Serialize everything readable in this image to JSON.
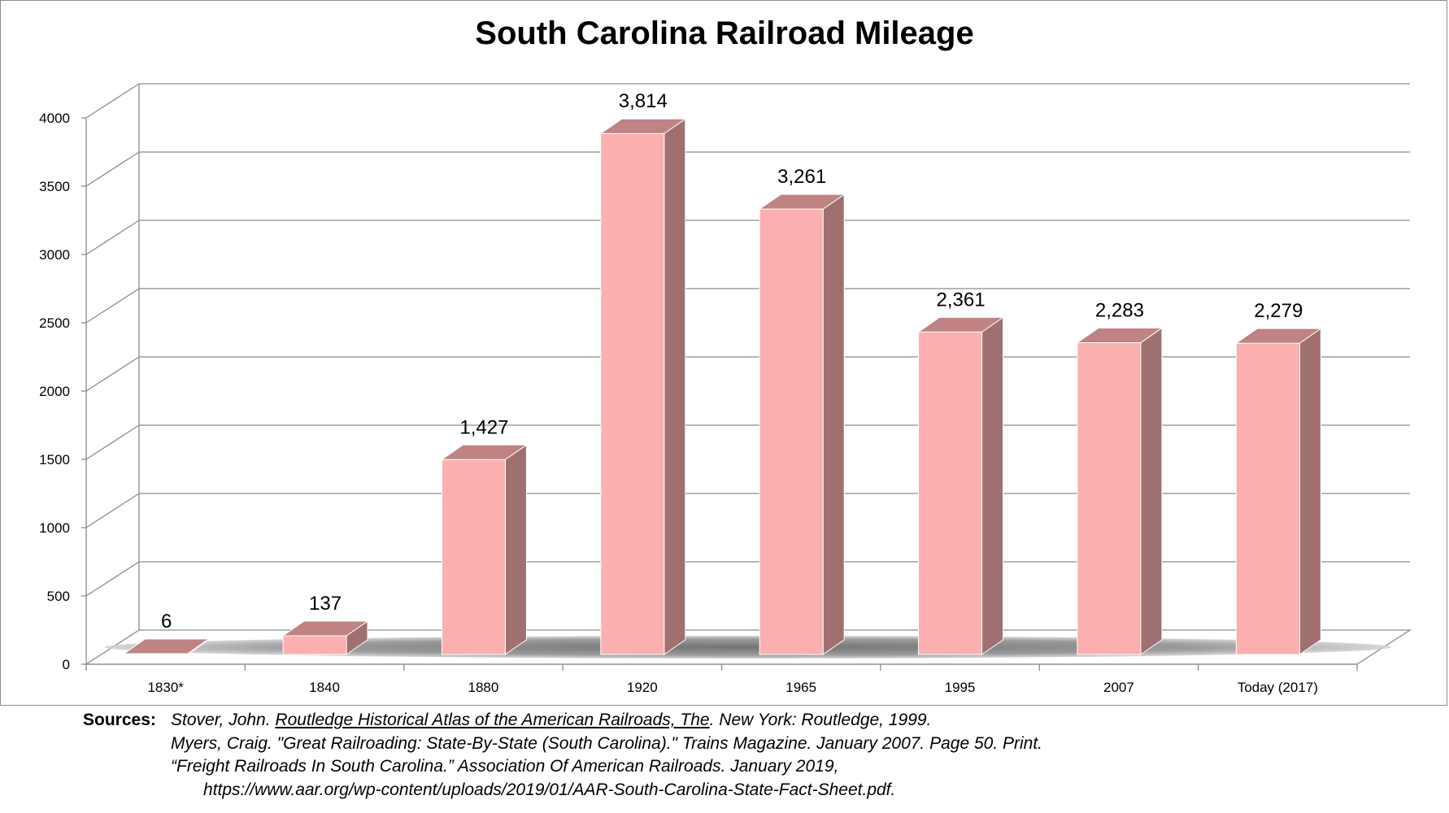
{
  "chart_data": {
    "type": "bar",
    "title": "South Carolina Railroad Mileage",
    "xlabel": "",
    "ylabel": "",
    "categories": [
      "1830*",
      "1840",
      "1880",
      "1920",
      "1965",
      "1995",
      "2007",
      "Today  (2017)"
    ],
    "series": [
      {
        "values": [
          6,
          137,
          1427,
          3814,
          3261,
          2361,
          2283,
          2279
        ],
        "data_labels": [
          "6",
          "137",
          "1,427",
          "3,814",
          "3,261",
          "2,361",
          "2,283",
          "2,279"
        ]
      }
    ],
    "ylim": [
      0,
      4000
    ],
    "y_ticks": [
      "0",
      "500",
      "1000",
      "1500",
      "2000",
      "2500",
      "3000",
      "3500",
      "4000"
    ],
    "y_tick_values": [
      0,
      500,
      1000,
      1500,
      2000,
      2500,
      3000,
      3500,
      4000
    ],
    "grid": true,
    "legend": "none",
    "style": "3d-column",
    "colors": {
      "bar_front": "#fbafaf",
      "bar_top": "#c08282",
      "bar_side": "#a07070",
      "floor": "#7a7a7a",
      "grid": "#8c8c8c"
    }
  },
  "sources": {
    "label": "Sources:",
    "lines": [
      {
        "pre": "Stover, John. ",
        "title": "Routledge Historical Atlas of the American Railroads, The",
        "post": ". New York: Routledge, 1999."
      },
      {
        "pre": "Myers, Craig. \"Great Railroading: State-By-State (South Carolina).\" Trains Magazine. January 2007. Page 50. Print.",
        "title": "",
        "post": ""
      },
      {
        "pre": "“Freight Railroads In South Carolina.” Association Of American Railroads. January 2019,",
        "title": "",
        "post": ""
      },
      {
        "pre": "https://www.aar.org/wp-content/uploads/2019/01/AAR-South-Carolina-State-Fact-Sheet.pdf.",
        "title": "",
        "post": ""
      }
    ]
  }
}
